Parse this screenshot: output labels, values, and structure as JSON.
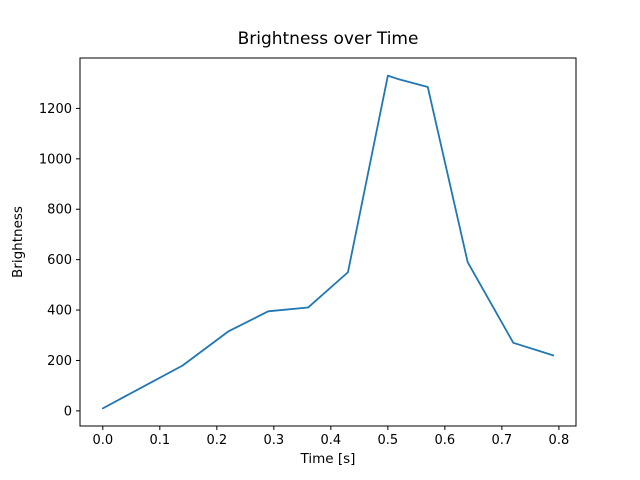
{
  "chart_data": {
    "type": "line",
    "title": "Brightness over Time",
    "xlabel": "Time [s]",
    "ylabel": "Brightness",
    "x": [
      0.0,
      0.07,
      0.14,
      0.22,
      0.29,
      0.36,
      0.43,
      0.5,
      0.52,
      0.57,
      0.64,
      0.72,
      0.79
    ],
    "y": [
      10,
      95,
      180,
      315,
      395,
      410,
      550,
      1330,
      1315,
      1285,
      590,
      270,
      220
    ],
    "xlim": [
      -0.04,
      0.83
    ],
    "ylim": [
      -60,
      1400
    ],
    "xticks": [
      0.0,
      0.1,
      0.2,
      0.3,
      0.4,
      0.5,
      0.6,
      0.7,
      0.8
    ],
    "yticks": [
      0,
      200,
      400,
      600,
      800,
      1000,
      1200
    ],
    "line_color": "#1f77b4",
    "spine_color": "#000000",
    "grid": "off",
    "legend": "none"
  }
}
